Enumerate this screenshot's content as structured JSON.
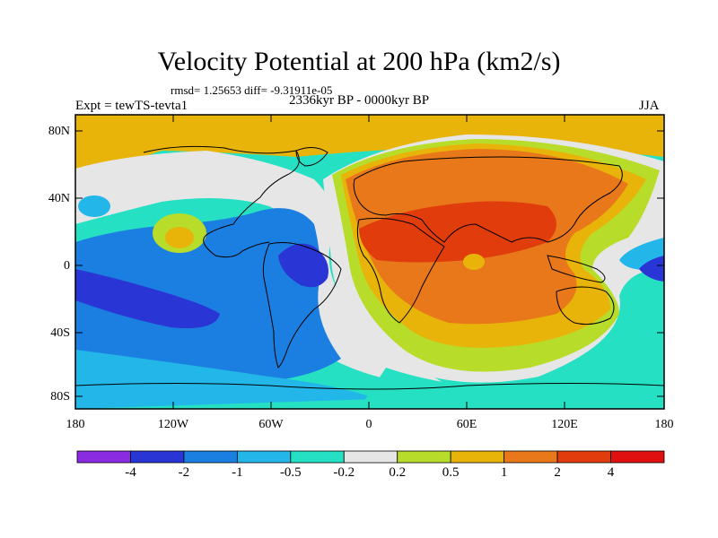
{
  "title": "Velocity Potential at 200 hPa (km2/s)",
  "stats": "rmsd= 1.25653 diff= -9.31911e-05",
  "experiment": "Expt = tewTS-tevta1",
  "period": "2336kyr BP - 0000kyr BP",
  "season": "JJA",
  "axes": {
    "y_ticks": [
      "80N",
      "40N",
      "0",
      "40S",
      "80S"
    ],
    "x_ticks": [
      "180",
      "120W",
      "60W",
      "0",
      "60E",
      "120E",
      "180"
    ]
  },
  "colorbar": {
    "labels": [
      "-4",
      "-2",
      "-1",
      "-0.5",
      "-0.2",
      "0.2",
      "0.5",
      "1",
      "2",
      "4"
    ],
    "colors": [
      "#8a2be2",
      "#2a35d6",
      "#1a7fe0",
      "#22b7e8",
      "#26e0c4",
      "#e6e6e6",
      "#b7dd2a",
      "#e8b40a",
      "#e8781a",
      "#e03c0c",
      "#e01010"
    ]
  },
  "palette": {
    "land_outline": "#000000",
    "frame": "#000000"
  }
}
